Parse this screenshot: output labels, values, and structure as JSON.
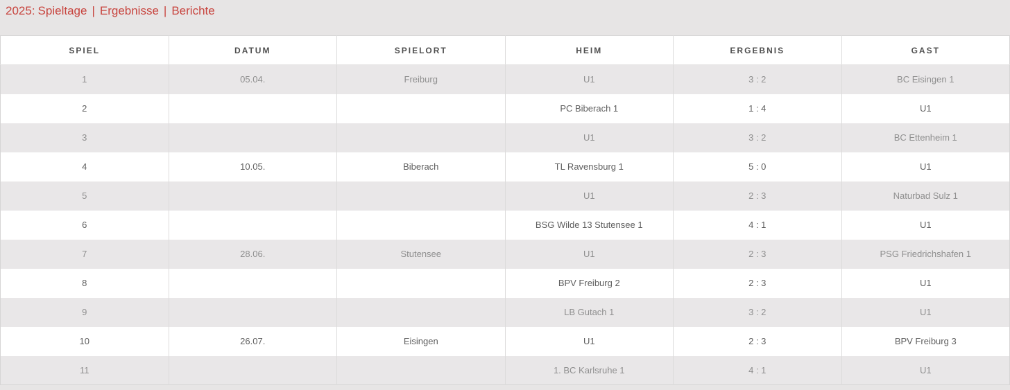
{
  "page": {
    "title_prefix": "2025:",
    "separator": "|",
    "nav": [
      {
        "label": "Spieltage"
      },
      {
        "label": "Ergebnisse"
      },
      {
        "label": "Berichte"
      }
    ]
  },
  "colors": {
    "accent_red": "#c8453f",
    "page_background": "#e7e5e5",
    "stripe_row_background": "#e9e7e8",
    "white_row_background": "#ffffff",
    "header_text": "#4f4f4f",
    "stripe_row_text": "#8f8f8f",
    "white_row_text": "#5e5e5e",
    "grid_line": "#dcdbdb"
  },
  "table": {
    "columns": [
      "SPIEL",
      "DATUM",
      "SPIELORT",
      "HEIM",
      "ERGEBNIS",
      "GAST"
    ],
    "rows": [
      {
        "spiel": "1",
        "datum": "05.04.",
        "spielort": "Freiburg",
        "heim": "U1",
        "ergebnis": "3 : 2",
        "gast": "BC Eisingen 1"
      },
      {
        "spiel": "2",
        "datum": "",
        "spielort": "",
        "heim": "PC Biberach 1",
        "ergebnis": "1 : 4",
        "gast": "U1"
      },
      {
        "spiel": "3",
        "datum": "",
        "spielort": "",
        "heim": "U1",
        "ergebnis": "3 : 2",
        "gast": "BC Ettenheim 1"
      },
      {
        "spiel": "4",
        "datum": "10.05.",
        "spielort": "Biberach",
        "heim": "TL Ravensburg 1",
        "ergebnis": "5 : 0",
        "gast": "U1"
      },
      {
        "spiel": "5",
        "datum": "",
        "spielort": "",
        "heim": "U1",
        "ergebnis": "2 : 3",
        "gast": "Naturbad Sulz 1"
      },
      {
        "spiel": "6",
        "datum": "",
        "spielort": "",
        "heim": "BSG Wilde 13 Stutensee 1",
        "ergebnis": "4 : 1",
        "gast": "U1"
      },
      {
        "spiel": "7",
        "datum": "28.06.",
        "spielort": "Stutensee",
        "heim": "U1",
        "ergebnis": "2 : 3",
        "gast": "PSG Friedrichshafen 1"
      },
      {
        "spiel": "8",
        "datum": "",
        "spielort": "",
        "heim": "BPV Freiburg 2",
        "ergebnis": "2 : 3",
        "gast": "U1"
      },
      {
        "spiel": "9",
        "datum": "",
        "spielort": "",
        "heim": "LB Gutach 1",
        "ergebnis": "3 : 2",
        "gast": "U1"
      },
      {
        "spiel": "10",
        "datum": "26.07.",
        "spielort": "Eisingen",
        "heim": "U1",
        "ergebnis": "2 : 3",
        "gast": "BPV Freiburg 3"
      },
      {
        "spiel": "11",
        "datum": "",
        "spielort": "",
        "heim": "1. BC Karlsruhe 1",
        "ergebnis": "4 : 1",
        "gast": "U1"
      }
    ]
  }
}
